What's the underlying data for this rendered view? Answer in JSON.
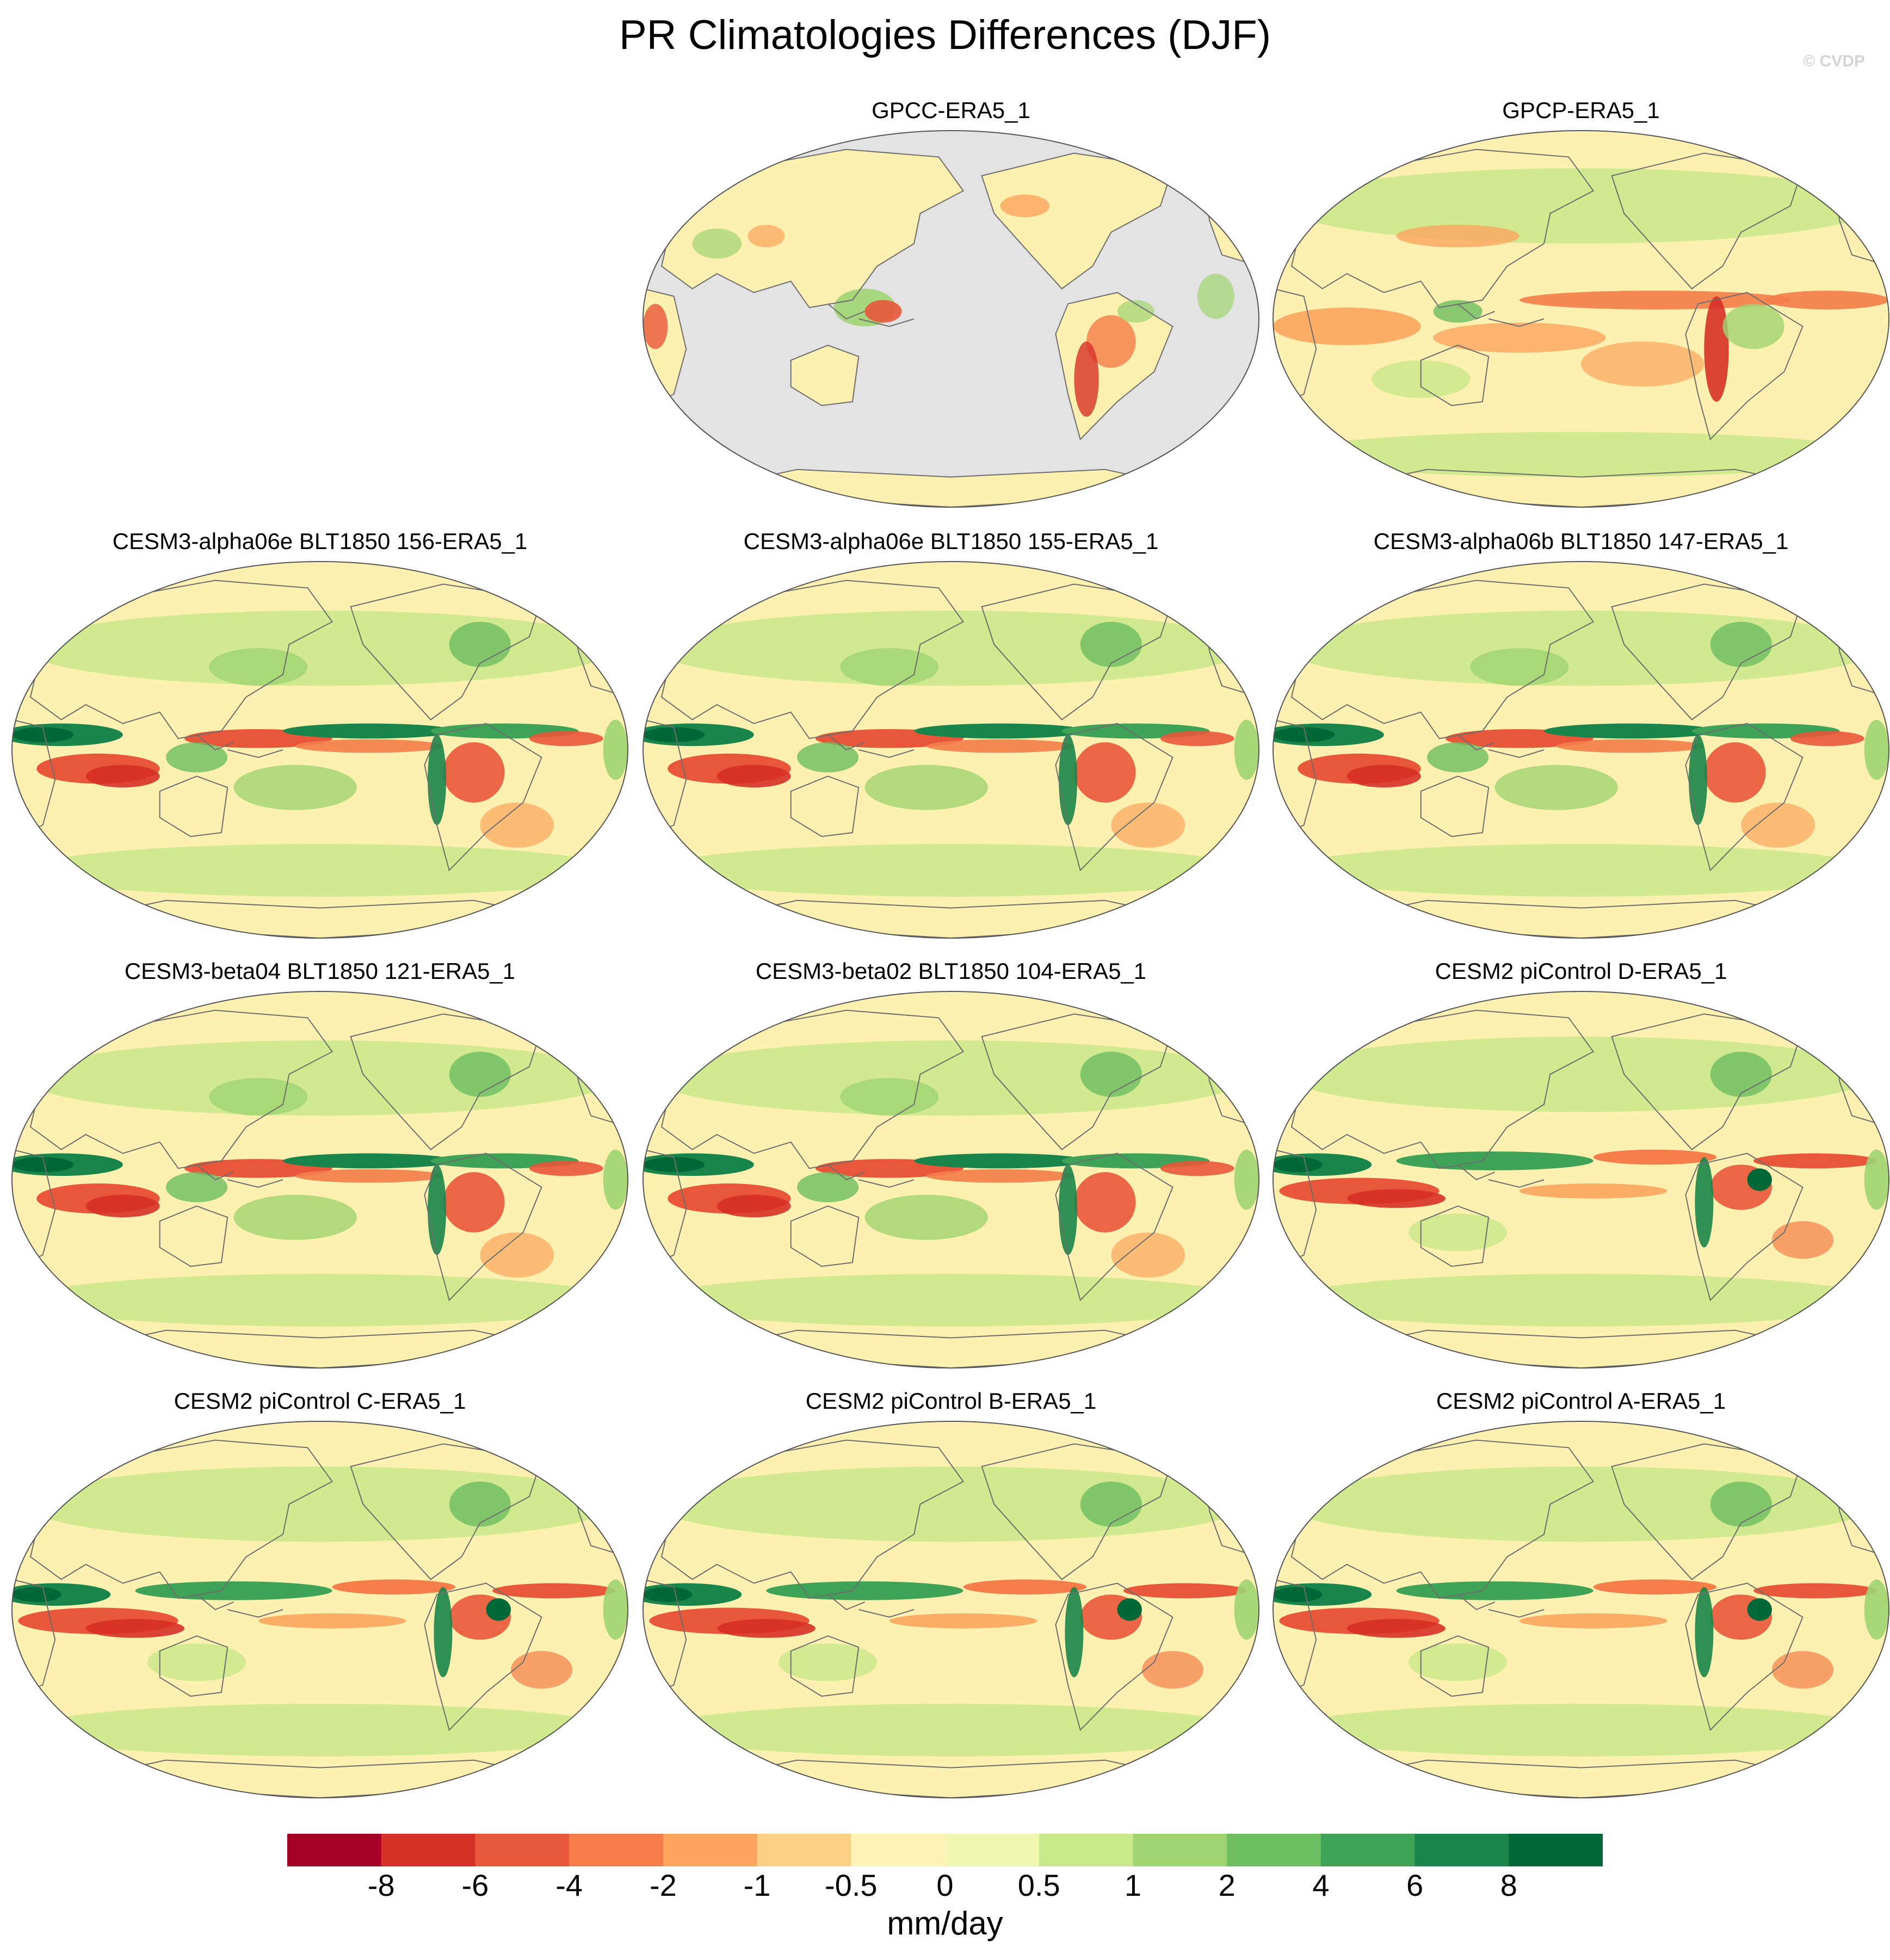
{
  "title": "PR Climatologies Differences (DJF)",
  "credit": "© CVDP",
  "panels": [
    {
      "label": "",
      "style": "empty"
    },
    {
      "label": "GPCC-ERA5_1",
      "style": "gpcc"
    },
    {
      "label": "GPCP-ERA5_1",
      "style": "gpcp"
    },
    {
      "label": "CESM3-alpha06e BLT1850 156-ERA5_1",
      "style": "cesm3"
    },
    {
      "label": "CESM3-alpha06e BLT1850 155-ERA5_1",
      "style": "cesm3"
    },
    {
      "label": "CESM3-alpha06b BLT1850 147-ERA5_1",
      "style": "cesm3"
    },
    {
      "label": "CESM3-beta04 BLT1850 121-ERA5_1",
      "style": "cesm3"
    },
    {
      "label": "CESM3-beta02 BLT1850 104-ERA5_1",
      "style": "cesm3"
    },
    {
      "label": "CESM2 piControl D-ERA5_1",
      "style": "cesm2"
    },
    {
      "label": "CESM2 piControl C-ERA5_1",
      "style": "cesm2"
    },
    {
      "label": "CESM2 piControl B-ERA5_1",
      "style": "cesm2"
    },
    {
      "label": "CESM2 piControl A-ERA5_1",
      "style": "cesm2"
    }
  ],
  "colorbar": {
    "units": "mm/day",
    "tick_labels": [
      "-8",
      "-6",
      "-4",
      "-2",
      "-1",
      "-0.5",
      "0",
      "0.5",
      "1",
      "2",
      "4",
      "6",
      "8"
    ],
    "colors": [
      "#a50026",
      "#d73027",
      "#e8573a",
      "#f47d4a",
      "#fba55e",
      "#fdcf84",
      "#fff2b6",
      "#f0f7b0",
      "#c9e88a",
      "#9fd471",
      "#6dbd61",
      "#3ea356",
      "#19854a",
      "#006837"
    ]
  },
  "map_colors": {
    "ocean_missing": "#e3e3e3",
    "neutral": "#fdf0b0",
    "coastline": "#6e6e6e"
  }
}
